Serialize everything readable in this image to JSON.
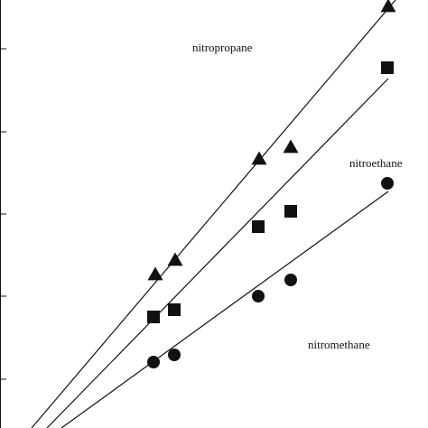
{
  "colors": {
    "ink": "#111111",
    "background": "#ffffff"
  },
  "chart_data": {
    "type": "scatter",
    "title": "",
    "xlabel": "",
    "ylabel": "",
    "xlim": [
      0,
      474
    ],
    "ylim": [
      0,
      474
    ],
    "x_ticks": [],
    "y_ticks": [
      420,
      328,
      237,
      146,
      54
    ],
    "grid": false,
    "legend": "none",
    "series": [
      {
        "name": "nitropropane",
        "marker": "triangle",
        "points": [
          [
            172,
            170
          ],
          [
            194,
            186
          ],
          [
            287,
            298
          ],
          [
            322,
            311
          ],
          [
            430,
            467
          ]
        ],
        "fit_line": [
          [
            35,
            0
          ],
          [
            438,
            474
          ]
        ]
      },
      {
        "name": "nitroethane",
        "marker": "square",
        "points": [
          [
            170,
            123
          ],
          [
            193,
            131
          ],
          [
            286,
            223
          ],
          [
            322,
            240
          ],
          [
            429,
            399
          ]
        ],
        "fit_line": [
          [
            52,
            0
          ],
          [
            430,
            387
          ]
        ]
      },
      {
        "name": "nitromethane",
        "marker": "circle",
        "points": [
          [
            170,
            73
          ],
          [
            193,
            81
          ],
          [
            286,
            146
          ],
          [
            322,
            164
          ],
          [
            429,
            271
          ]
        ],
        "fit_line": [
          [
            68,
            0
          ],
          [
            430,
            262
          ]
        ]
      }
    ],
    "annotations": [
      {
        "text": "nitropropane",
        "series": "nitropropane"
      },
      {
        "text": "nitroethane",
        "series": "nitroethane"
      },
      {
        "text": "nitromethane",
        "series": "nitromethane"
      }
    ]
  }
}
